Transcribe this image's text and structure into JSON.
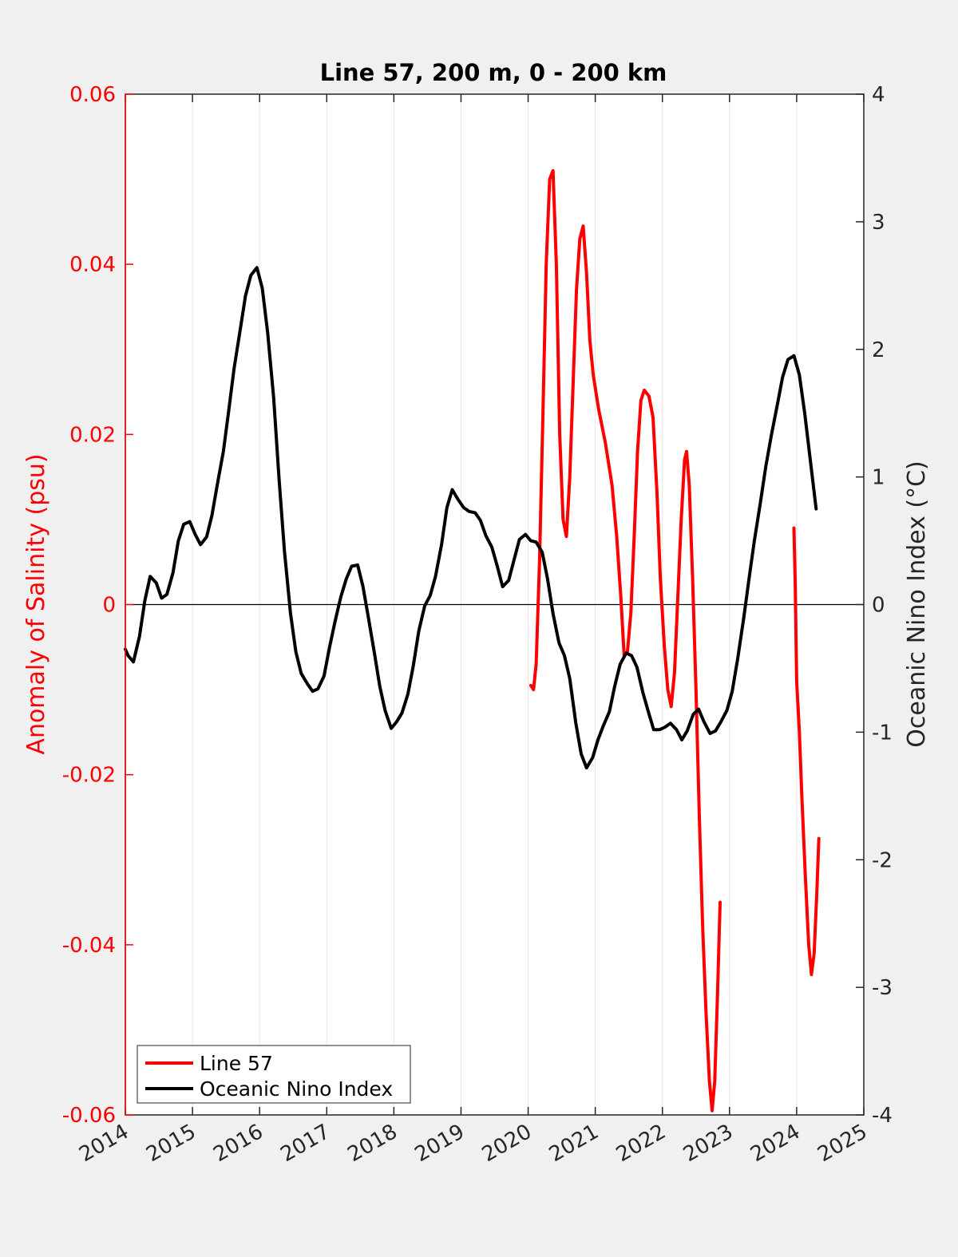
{
  "chart_data": {
    "type": "line",
    "title": "Line 57, 200 m, 0 - 200 km",
    "xlabel": "",
    "ylabel_left": "Anomaly of Salinity (psu)",
    "ylabel_right": "Oceanic Nino Index (°C)",
    "xlim": [
      2014,
      2025
    ],
    "ylim_left": [
      -0.06,
      0.06
    ],
    "ylim_right": [
      -4,
      4
    ],
    "x_ticks": [
      "2014",
      "2015",
      "2016",
      "2017",
      "2018",
      "2019",
      "2020",
      "2021",
      "2022",
      "2023",
      "2024",
      "2025"
    ],
    "y_ticks_left": [
      "0.06",
      "0.04",
      "0.02",
      "0",
      "-0.02",
      "-0.04",
      "-0.06"
    ],
    "y_ticks_right": [
      "4",
      "3",
      "2",
      "1",
      "0",
      "-1",
      "-2",
      "-3",
      "-4"
    ],
    "grid": "vertical",
    "legend_position": "bottom-left",
    "colors": {
      "line57": "#ff0000",
      "oni": "#000000"
    },
    "series": [
      {
        "name": "Line 57",
        "axis": "left",
        "color": "#ff0000",
        "segments": [
          [
            [
              2020.04,
              -0.0095
            ],
            [
              2020.08,
              -0.01
            ],
            [
              2020.12,
              -0.007
            ],
            [
              2020.17,
              0.005
            ],
            [
              2020.22,
              0.022
            ],
            [
              2020.27,
              0.04
            ],
            [
              2020.32,
              0.05
            ],
            [
              2020.37,
              0.051
            ],
            [
              2020.42,
              0.04
            ],
            [
              2020.47,
              0.02
            ],
            [
              2020.52,
              0.01
            ],
            [
              2020.57,
              0.008
            ],
            [
              2020.62,
              0.015
            ],
            [
              2020.67,
              0.026
            ],
            [
              2020.72,
              0.037
            ],
            [
              2020.77,
              0.043
            ],
            [
              2020.82,
              0.0445
            ],
            [
              2020.87,
              0.039
            ],
            [
              2020.92,
              0.031
            ],
            [
              2020.97,
              0.027
            ],
            [
              2021.05,
              0.023
            ],
            [
              2021.15,
              0.019
            ],
            [
              2021.25,
              0.014
            ],
            [
              2021.32,
              0.008
            ],
            [
              2021.38,
              0.001
            ],
            [
              2021.43,
              -0.006
            ],
            [
              2021.48,
              -0.0055
            ],
            [
              2021.53,
              -0.001
            ],
            [
              2021.58,
              0.008
            ],
            [
              2021.63,
              0.018
            ],
            [
              2021.68,
              0.024
            ],
            [
              2021.73,
              0.0252
            ],
            [
              2021.8,
              0.0245
            ],
            [
              2021.86,
              0.022
            ],
            [
              2021.92,
              0.013
            ],
            [
              2021.97,
              0.003
            ],
            [
              2022.03,
              -0.005
            ],
            [
              2022.08,
              -0.01
            ],
            [
              2022.13,
              -0.012
            ],
            [
              2022.18,
              -0.008
            ],
            [
              2022.23,
              0.001
            ],
            [
              2022.28,
              0.01
            ],
            [
              2022.33,
              0.017
            ],
            [
              2022.36,
              0.018
            ],
            [
              2022.4,
              0.014
            ],
            [
              2022.45,
              0.003
            ],
            [
              2022.5,
              -0.01
            ],
            [
              2022.55,
              -0.025
            ],
            [
              2022.6,
              -0.038
            ],
            [
              2022.65,
              -0.048
            ],
            [
              2022.7,
              -0.056
            ],
            [
              2022.74,
              -0.0595
            ],
            [
              2022.78,
              -0.056
            ],
            [
              2022.82,
              -0.046
            ],
            [
              2022.86,
              -0.035
            ]
          ],
          [
            [
              2023.96,
              0.009
            ],
            [
              2023.98,
              0.002
            ],
            [
              2024.0,
              -0.009
            ],
            [
              2024.04,
              -0.015
            ],
            [
              2024.08,
              -0.023
            ],
            [
              2024.13,
              -0.032
            ],
            [
              2024.18,
              -0.04
            ],
            [
              2024.22,
              -0.0435
            ],
            [
              2024.26,
              -0.041
            ],
            [
              2024.3,
              -0.034
            ],
            [
              2024.33,
              -0.0275
            ]
          ]
        ]
      },
      {
        "name": "Oceanic Nino Index",
        "axis": "right",
        "color": "#000000",
        "segments": [
          [
            [
              2014.0,
              -0.35
            ],
            [
              2014.04,
              -0.4
            ],
            [
              2014.12,
              -0.45
            ],
            [
              2014.21,
              -0.25
            ],
            [
              2014.29,
              0.03
            ],
            [
              2014.37,
              0.22
            ],
            [
              2014.46,
              0.17
            ],
            [
              2014.54,
              0.05
            ],
            [
              2014.62,
              0.08
            ],
            [
              2014.71,
              0.25
            ],
            [
              2014.79,
              0.5
            ],
            [
              2014.87,
              0.63
            ],
            [
              2014.96,
              0.65
            ],
            [
              2015.04,
              0.55
            ],
            [
              2015.12,
              0.47
            ],
            [
              2015.21,
              0.53
            ],
            [
              2015.29,
              0.7
            ],
            [
              2015.37,
              0.94
            ],
            [
              2015.46,
              1.2
            ],
            [
              2015.54,
              1.52
            ],
            [
              2015.62,
              1.85
            ],
            [
              2015.71,
              2.15
            ],
            [
              2015.79,
              2.42
            ],
            [
              2015.87,
              2.58
            ],
            [
              2015.96,
              2.64
            ],
            [
              2016.04,
              2.48
            ],
            [
              2016.12,
              2.13
            ],
            [
              2016.21,
              1.62
            ],
            [
              2016.29,
              0.98
            ],
            [
              2016.37,
              0.42
            ],
            [
              2016.46,
              -0.07
            ],
            [
              2016.54,
              -0.37
            ],
            [
              2016.62,
              -0.54
            ],
            [
              2016.71,
              -0.62
            ],
            [
              2016.79,
              -0.68
            ],
            [
              2016.87,
              -0.66
            ],
            [
              2016.96,
              -0.56
            ],
            [
              2017.04,
              -0.34
            ],
            [
              2017.12,
              -0.14
            ],
            [
              2017.21,
              0.06
            ],
            [
              2017.29,
              0.2
            ],
            [
              2017.37,
              0.3
            ],
            [
              2017.46,
              0.31
            ],
            [
              2017.54,
              0.14
            ],
            [
              2017.62,
              -0.1
            ],
            [
              2017.71,
              -0.38
            ],
            [
              2017.79,
              -0.64
            ],
            [
              2017.87,
              -0.83
            ],
            [
              2017.96,
              -0.97
            ],
            [
              2018.04,
              -0.92
            ],
            [
              2018.12,
              -0.85
            ],
            [
              2018.21,
              -0.7
            ],
            [
              2018.29,
              -0.48
            ],
            [
              2018.37,
              -0.21
            ],
            [
              2018.46,
              -0.01
            ],
            [
              2018.54,
              0.07
            ],
            [
              2018.62,
              0.22
            ],
            [
              2018.71,
              0.47
            ],
            [
              2018.79,
              0.76
            ],
            [
              2018.87,
              0.9
            ],
            [
              2018.96,
              0.82
            ],
            [
              2019.04,
              0.76
            ],
            [
              2019.12,
              0.73
            ],
            [
              2019.21,
              0.72
            ],
            [
              2019.29,
              0.66
            ],
            [
              2019.37,
              0.54
            ],
            [
              2019.46,
              0.45
            ],
            [
              2019.54,
              0.3
            ],
            [
              2019.62,
              0.14
            ],
            [
              2019.71,
              0.19
            ],
            [
              2019.79,
              0.35
            ],
            [
              2019.87,
              0.51
            ],
            [
              2019.96,
              0.55
            ],
            [
              2020.04,
              0.5
            ],
            [
              2020.12,
              0.49
            ],
            [
              2020.21,
              0.41
            ],
            [
              2020.29,
              0.2
            ],
            [
              2020.37,
              -0.07
            ],
            [
              2020.46,
              -0.3
            ],
            [
              2020.54,
              -0.4
            ],
            [
              2020.62,
              -0.58
            ],
            [
              2020.71,
              -0.93
            ],
            [
              2020.79,
              -1.17
            ],
            [
              2020.87,
              -1.28
            ],
            [
              2020.96,
              -1.2
            ],
            [
              2021.04,
              -1.06
            ],
            [
              2021.12,
              -0.95
            ],
            [
              2021.21,
              -0.84
            ],
            [
              2021.29,
              -0.64
            ],
            [
              2021.37,
              -0.47
            ],
            [
              2021.46,
              -0.38
            ],
            [
              2021.54,
              -0.4
            ],
            [
              2021.62,
              -0.49
            ],
            [
              2021.71,
              -0.69
            ],
            [
              2021.79,
              -0.84
            ],
            [
              2021.87,
              -0.98
            ],
            [
              2021.96,
              -0.98
            ],
            [
              2022.04,
              -0.96
            ],
            [
              2022.12,
              -0.93
            ],
            [
              2022.21,
              -0.98
            ],
            [
              2022.29,
              -1.06
            ],
            [
              2022.37,
              -0.99
            ],
            [
              2022.46,
              -0.86
            ],
            [
              2022.54,
              -0.82
            ],
            [
              2022.62,
              -0.92
            ],
            [
              2022.71,
              -1.01
            ],
            [
              2022.79,
              -0.99
            ],
            [
              2022.87,
              -0.92
            ],
            [
              2022.96,
              -0.83
            ],
            [
              2023.04,
              -0.68
            ],
            [
              2023.12,
              -0.43
            ],
            [
              2023.21,
              -0.11
            ],
            [
              2023.29,
              0.2
            ],
            [
              2023.37,
              0.5
            ],
            [
              2023.46,
              0.8
            ],
            [
              2023.54,
              1.08
            ],
            [
              2023.62,
              1.32
            ],
            [
              2023.71,
              1.56
            ],
            [
              2023.79,
              1.78
            ],
            [
              2023.87,
              1.92
            ],
            [
              2023.96,
              1.95
            ],
            [
              2024.04,
              1.8
            ],
            [
              2024.12,
              1.5
            ],
            [
              2024.21,
              1.1
            ],
            [
              2024.29,
              0.75
            ]
          ]
        ]
      }
    ]
  },
  "legend": [
    {
      "label": "Line 57",
      "color": "#ff0000"
    },
    {
      "label": "Oceanic Nino Index",
      "color": "#000000"
    }
  ]
}
